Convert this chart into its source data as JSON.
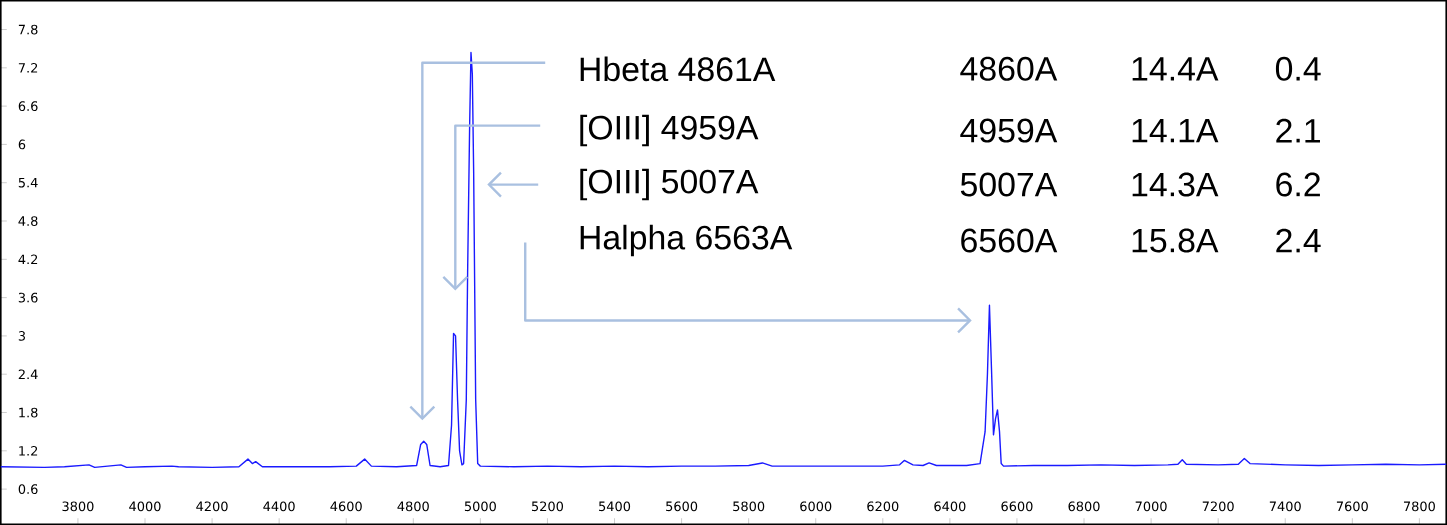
{
  "chart_data": {
    "type": "line",
    "x": [
      3570,
      3700,
      3760,
      3833,
      3850,
      3928,
      3945,
      4000,
      4080,
      4100,
      4200,
      4280,
      4307,
      4320,
      4330,
      4350,
      4450,
      4550,
      4630,
      4655,
      4675,
      4750,
      4810,
      4822,
      4831,
      4840,
      4850,
      4880,
      4905,
      4914,
      4920,
      4926,
      4932,
      4938,
      4945,
      4950,
      4958,
      4962,
      4968,
      4972,
      4976,
      4980,
      4986,
      4992,
      5000,
      5100,
      5200,
      5300,
      5400,
      5500,
      5600,
      5700,
      5800,
      5841,
      5870,
      6000,
      6100,
      6200,
      6250,
      6264,
      6290,
      6320,
      6338,
      6360,
      6450,
      6490,
      6505,
      6512,
      6518,
      6524,
      6530,
      6536,
      6542,
      6548,
      6553,
      6560,
      6650,
      6750,
      6850,
      6950,
      7050,
      7080,
      7093,
      7105,
      7200,
      7260,
      7278,
      7295,
      7400,
      7500,
      7600,
      7700,
      7800,
      7880
    ],
    "series": [
      {
        "color": "#1a1aff",
        "values": [
          0.95,
          0.94,
          0.95,
          0.98,
          0.94,
          0.98,
          0.94,
          0.95,
          0.96,
          0.95,
          0.94,
          0.95,
          1.07,
          1.0,
          1.03,
          0.95,
          0.95,
          0.95,
          0.96,
          1.07,
          0.96,
          0.95,
          0.97,
          1.3,
          1.35,
          1.3,
          0.97,
          0.95,
          0.97,
          1.6,
          3.04,
          3.0,
          2.0,
          1.2,
          0.98,
          1.0,
          2.0,
          4.0,
          6.3,
          7.44,
          7.1,
          5.56,
          2.0,
          1.0,
          0.96,
          0.95,
          0.96,
          0.95,
          0.96,
          0.95,
          0.96,
          0.96,
          0.97,
          1.01,
          0.96,
          0.96,
          0.96,
          0.96,
          0.98,
          1.05,
          0.98,
          0.97,
          1.01,
          0.97,
          0.97,
          1.0,
          1.5,
          2.4,
          3.48,
          2.5,
          1.45,
          1.7,
          1.84,
          1.5,
          1.0,
          0.96,
          0.97,
          0.97,
          0.98,
          0.97,
          0.98,
          0.99,
          1.06,
          0.99,
          0.98,
          0.99,
          1.08,
          1.0,
          0.98,
          0.97,
          0.98,
          0.99,
          0.98,
          0.99
        ]
      }
    ],
    "xlim": [
      3570,
      7880
    ],
    "ylim": [
      0.05,
      8.25
    ],
    "xticks": [
      3800,
      4000,
      4200,
      4400,
      4600,
      4800,
      5000,
      5200,
      5400,
      5600,
      5800,
      6000,
      6200,
      6400,
      6600,
      6800,
      7000,
      7200,
      7400,
      7600,
      7800
    ],
    "yticks": [
      0.6,
      1.2,
      1.8,
      2.4,
      3,
      3.6,
      4.2,
      4.8,
      5.4,
      6,
      6.6,
      7.2,
      7.8
    ],
    "annotations": [
      "Hbeta 4861A",
      "4860A",
      "14.4A",
      "0.4",
      "[OIII] 4959A",
      "4959A",
      "14.1A",
      "2.1",
      "[OIII] 5007A",
      "5007A",
      "14.3A",
      "6.2",
      "Halpha 6563A",
      "6560A",
      "15.8A",
      "2.4"
    ]
  }
}
